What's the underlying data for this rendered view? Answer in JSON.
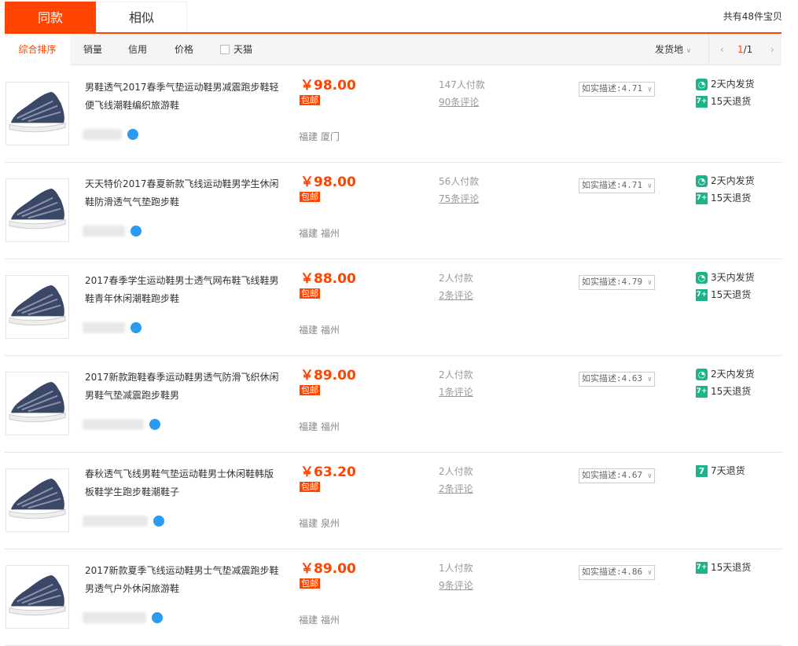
{
  "tabs": [
    {
      "label": "同款",
      "active": true
    },
    {
      "label": "相似",
      "active": false
    }
  ],
  "total": "共有48件宝贝",
  "sort": {
    "items": [
      "综合排序",
      "销量",
      "信用",
      "价格"
    ],
    "tmall": "天猫",
    "ship_from": "发货地",
    "page": "1",
    "pages": "/1"
  },
  "accent": "#ff4400",
  "products": [
    {
      "title": "男鞋透气2017春季气垫运动鞋男减震跑步鞋轻便飞线潮鞋编织旅游鞋",
      "price": "￥98.00",
      "free_shipping": "包邮",
      "location": "福建 厦门",
      "sales": "147人付款",
      "reviews": "90条评论",
      "rating": "如实描述:4.71",
      "services": [
        {
          "icon": "clock-icon",
          "label": "2天内发货"
        },
        {
          "icon": "7plus-icon",
          "label": "15天退货"
        }
      ]
    },
    {
      "title": "天天特价2017春夏新款飞线运动鞋男学生休闲鞋防滑透气气垫跑步鞋",
      "price": "￥98.00",
      "free_shipping": "包邮",
      "location": "福建 福州",
      "sales": "56人付款",
      "reviews": "75条评论",
      "rating": "如实描述:4.71",
      "services": [
        {
          "icon": "clock-icon",
          "label": "2天内发货"
        },
        {
          "icon": "7plus-icon",
          "label": "15天退货"
        }
      ]
    },
    {
      "title": "2017春季学生运动鞋男士透气网布鞋飞线鞋男鞋青年休闲潮鞋跑步鞋",
      "price": "￥88.00",
      "free_shipping": "包邮",
      "location": "福建 福州",
      "sales": "2人付款",
      "reviews": "2条评论",
      "rating": "如实描述:4.79",
      "services": [
        {
          "icon": "clock-icon",
          "label": "3天内发货"
        },
        {
          "icon": "7plus-icon",
          "label": "15天退货"
        }
      ]
    },
    {
      "title": "2017新款跑鞋春季运动鞋男透气防滑飞织休闲男鞋气垫减震跑步鞋男",
      "price": "￥89.00",
      "free_shipping": "包邮",
      "location": "福建 福州",
      "sales": "2人付款",
      "reviews": "1条评论",
      "rating": "如实描述:4.63",
      "services": [
        {
          "icon": "clock-icon",
          "label": "2天内发货"
        },
        {
          "icon": "7plus-icon",
          "label": "15天退货"
        }
      ]
    },
    {
      "title": "春秋透气飞线男鞋气垫运动鞋男士休闲鞋韩版板鞋学生跑步鞋潮鞋子",
      "price": "￥63.20",
      "free_shipping": "包邮",
      "location": "福建 泉州",
      "sales": "2人付款",
      "reviews": "2条评论",
      "rating": "如实描述:4.67",
      "services": [
        {
          "icon": "7-icon",
          "label": "7天退货"
        }
      ]
    },
    {
      "title": "2017新款夏季飞线运动鞋男士气垫减震跑步鞋男透气户外休闲旅游鞋",
      "price": "￥89.00",
      "free_shipping": "包邮",
      "location": "福建 福州",
      "sales": "1人付款",
      "reviews": "9条评论",
      "rating": "如实描述:4.86",
      "services": [
        {
          "icon": "7plus-icon",
          "label": "15天退货"
        }
      ]
    }
  ]
}
